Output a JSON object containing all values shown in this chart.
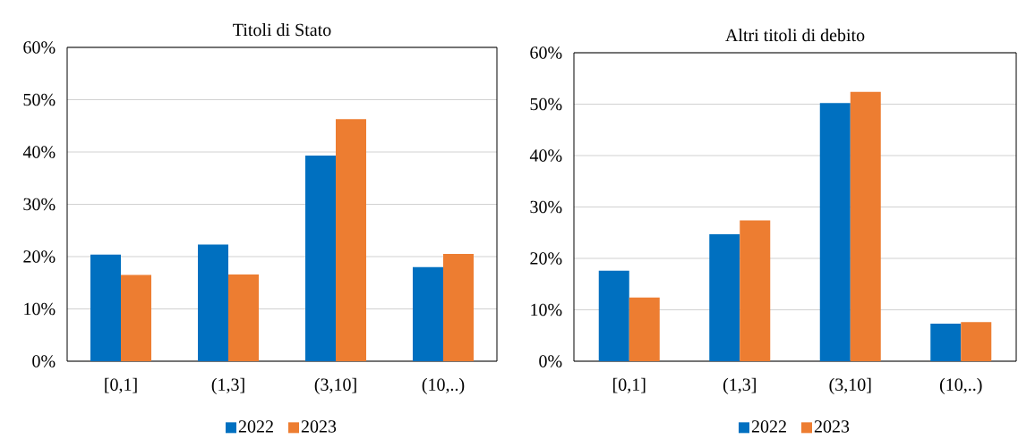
{
  "chart_data": [
    {
      "type": "bar",
      "title": "Titoli di Stato",
      "categories": [
        "[0,1]",
        "(1,3]",
        "(3,10]",
        "(10,..)"
      ],
      "series": [
        {
          "name": "2022",
          "color": "#0070c0",
          "values": [
            20.4,
            22.3,
            39.3,
            18.0
          ]
        },
        {
          "name": "2023",
          "color": "#ed7d31",
          "values": [
            16.5,
            16.6,
            46.3,
            20.5
          ]
        }
      ],
      "ylim": [
        0,
        60
      ],
      "yticks": [
        {
          "value": 0,
          "label": "0%"
        },
        {
          "value": 10,
          "label": "10%"
        },
        {
          "value": 20,
          "label": "20%"
        },
        {
          "value": 30,
          "label": "30%"
        },
        {
          "value": 40,
          "label": "40%"
        },
        {
          "value": 50,
          "label": "50%"
        },
        {
          "value": 60,
          "label": "60%"
        }
      ],
      "grid": "y",
      "legend": "bottom"
    },
    {
      "type": "bar",
      "title": "Altri titoli di debito",
      "categories": [
        "[0,1]",
        "(1,3]",
        "(3,10]",
        "(10,..)"
      ],
      "series": [
        {
          "name": "2022",
          "color": "#0070c0",
          "values": [
            17.6,
            24.7,
            50.2,
            7.3
          ]
        },
        {
          "name": "2023",
          "color": "#ed7d31",
          "values": [
            12.4,
            27.4,
            52.4,
            7.6
          ]
        }
      ],
      "ylim": [
        0,
        60
      ],
      "yticks": [
        {
          "value": 0,
          "label": "0%"
        },
        {
          "value": 10,
          "label": "10%"
        },
        {
          "value": 20,
          "label": "20%"
        },
        {
          "value": 30,
          "label": "30%"
        },
        {
          "value": 40,
          "label": "40%"
        },
        {
          "value": 50,
          "label": "50%"
        },
        {
          "value": 60,
          "label": "60%"
        }
      ],
      "grid": "y",
      "legend": "bottom"
    }
  ]
}
